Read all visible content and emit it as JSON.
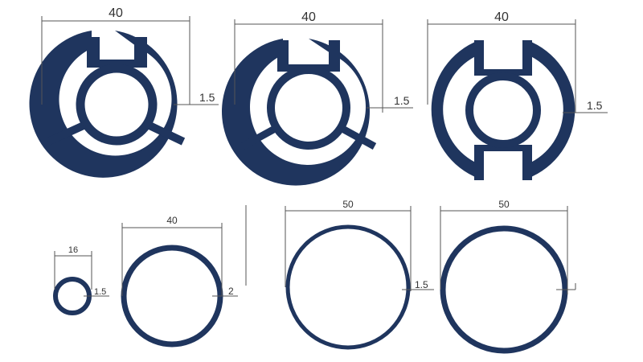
{
  "colors": {
    "profile": "#1f355e",
    "dimension_line": "#555555",
    "text": "#333333",
    "background": "#ffffff"
  },
  "profiles": [
    {
      "id": "p1",
      "width_label": "40",
      "wall_label": "1.5"
    },
    {
      "id": "p2",
      "width_label": "40",
      "wall_label": "1.5"
    },
    {
      "id": "p3",
      "width_label": "40",
      "wall_label": "1.5"
    }
  ],
  "tubes": [
    {
      "id": "t1",
      "diameter_label": "16",
      "wall_label": "1.5"
    },
    {
      "id": "t2",
      "diameter_label": "40",
      "wall_label": "2"
    },
    {
      "id": "t3",
      "diameter_label": "50",
      "wall_label": "1.5"
    },
    {
      "id": "t4",
      "diameter_label": "50",
      "wall_label": ""
    }
  ]
}
